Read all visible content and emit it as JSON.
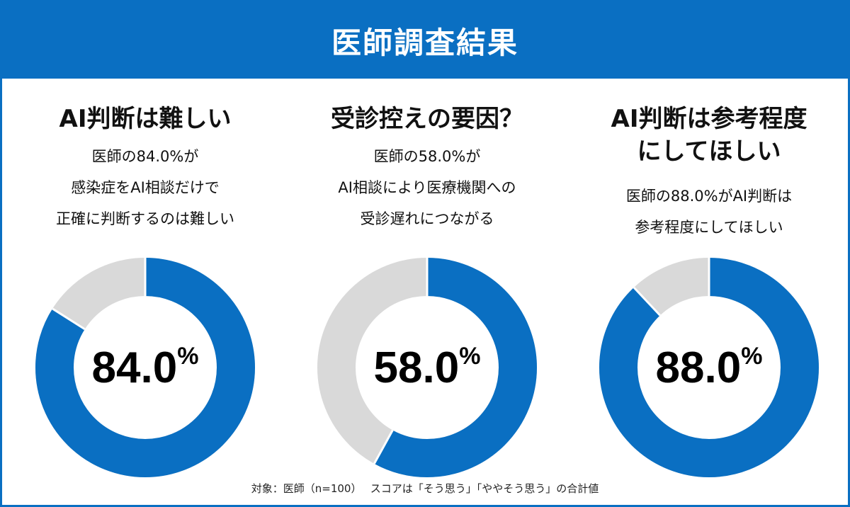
{
  "header": {
    "title": "医師調査結果"
  },
  "colors": {
    "accent": "#0a6fc2",
    "remainder": "#d9d9d9"
  },
  "panels": [
    {
      "title_lines": [
        "AI判断は難しい"
      ],
      "desc_lines": [
        "医師の84.0%が",
        "感染症をAI相談だけで",
        "正確に判断するのは難しい"
      ],
      "value_label": "84.0%"
    },
    {
      "title_lines": [
        "受診控えの要因？"
      ],
      "desc_lines": [
        "医師の58.0%が",
        "AI相談により医療機関への",
        "受診遅れにつながる"
      ],
      "value_label": "58.0%"
    },
    {
      "title_lines": [
        "AI判断は参考程度",
        "にしてほしい"
      ],
      "desc_lines": [
        "医師の88.0%がAI判断は",
        "参考程度にしてほしい"
      ],
      "value_label": "88.0%"
    }
  ],
  "chart_data": [
    {
      "type": "pie",
      "categories": [
        "",
        ""
      ],
      "values": [
        84.0,
        16.0
      ]
    },
    {
      "type": "pie",
      "categories": [
        "",
        ""
      ],
      "values": [
        58.0,
        42.0
      ]
    },
    {
      "type": "pie",
      "categories": [
        "",
        ""
      ],
      "values": [
        88.0,
        12.0
      ]
    }
  ],
  "footer": {
    "text": "対象：医師（n=100）　 スコアは「そう思う」「ややそう思う」の合計値"
  }
}
